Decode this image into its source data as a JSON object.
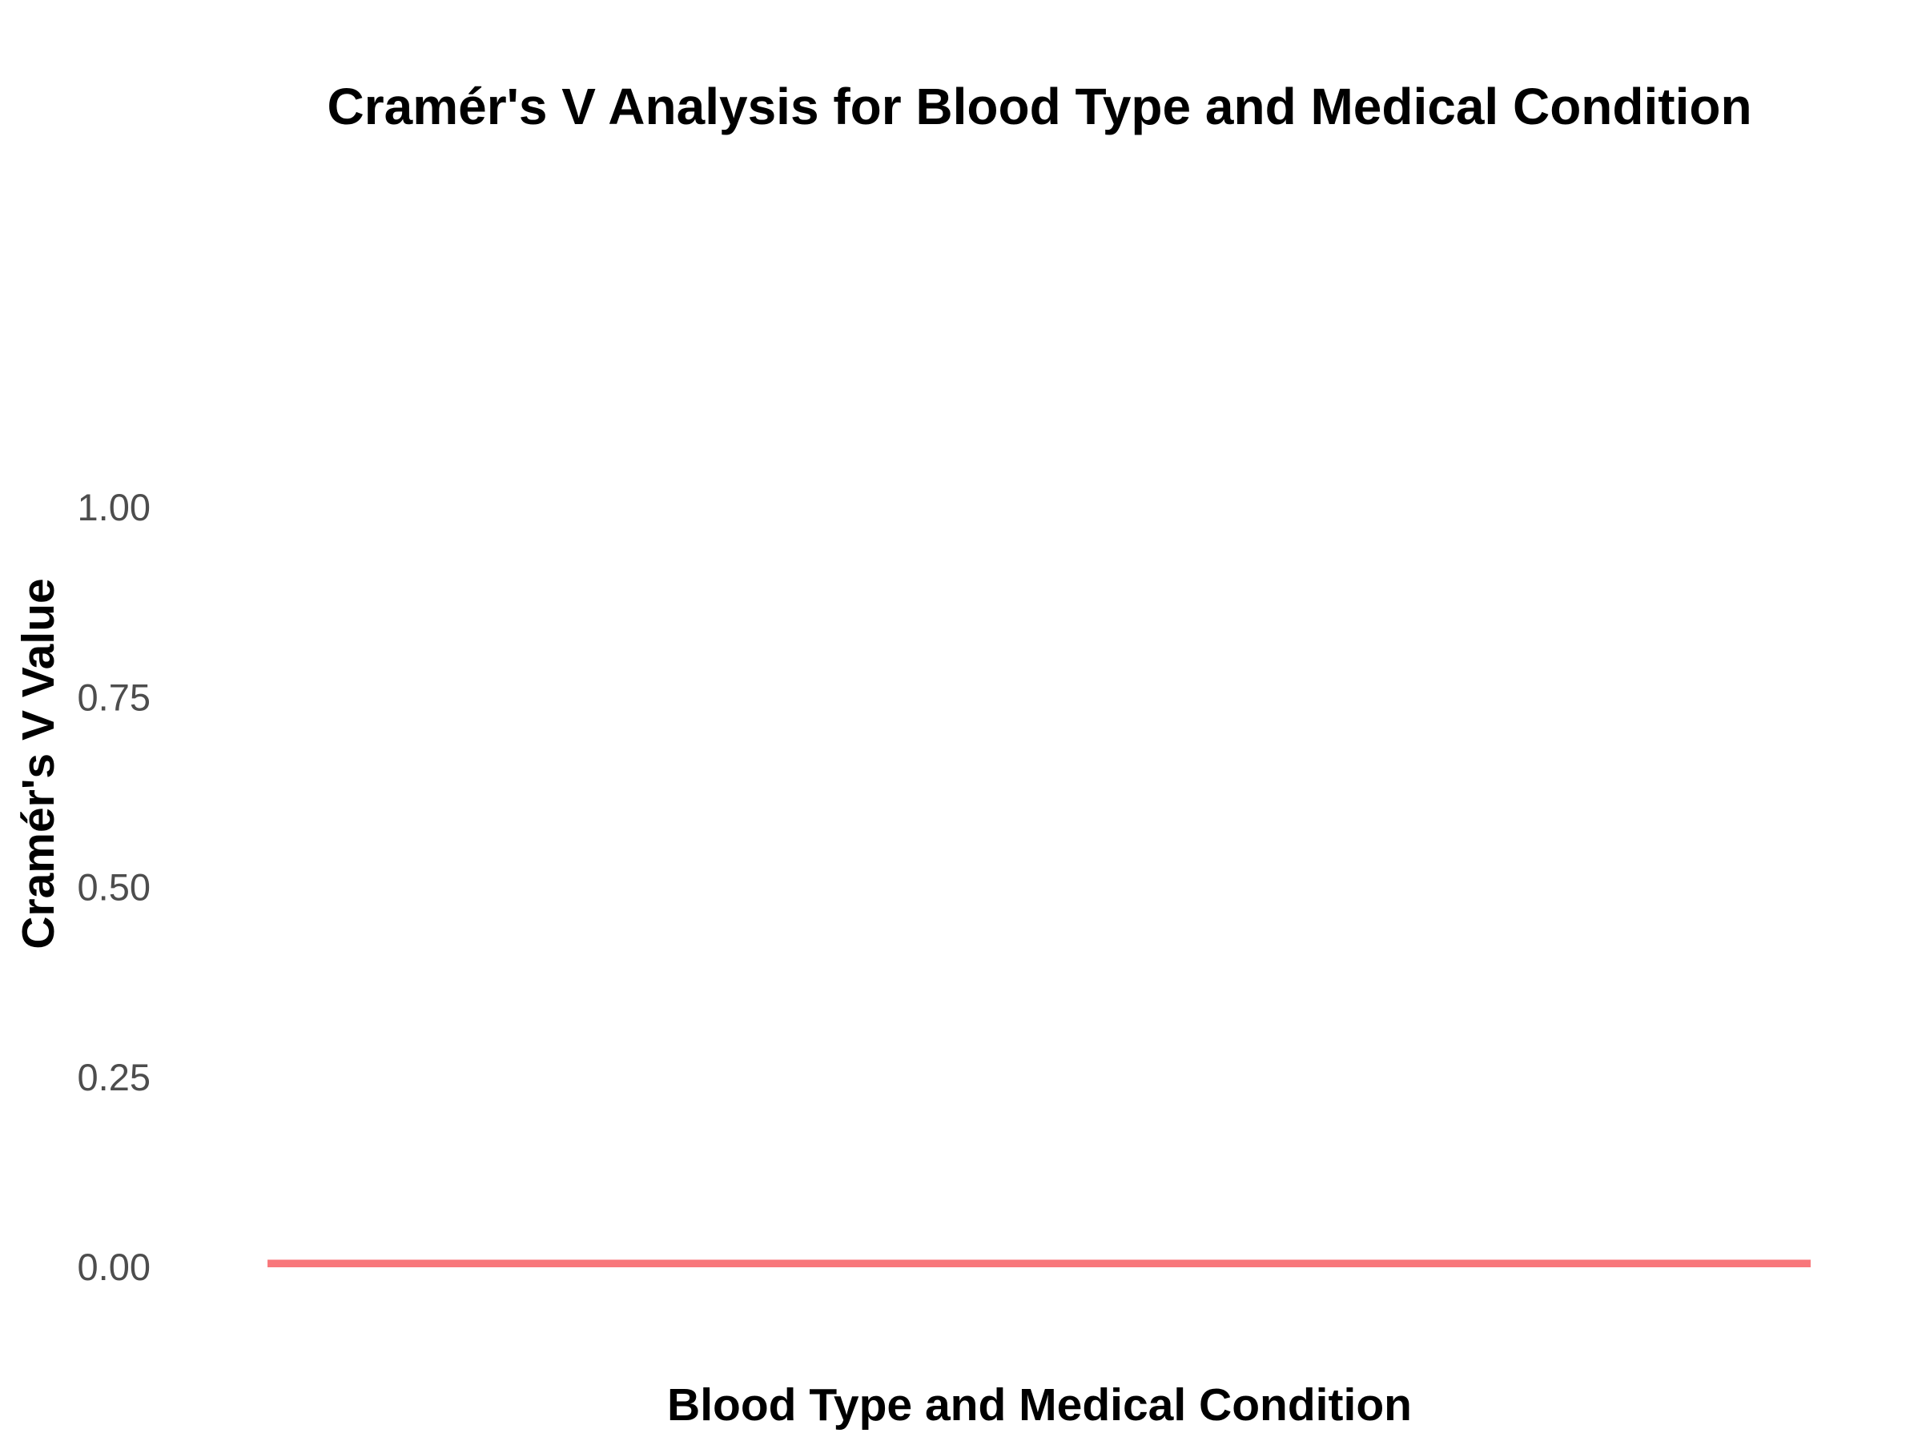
{
  "chart_data": {
    "type": "bar",
    "title": "Cramér's V Analysis for Blood Type and Medical Condition",
    "xlabel": "Blood Type and Medical Condition",
    "ylabel": "Cramér's V Value",
    "categories": [
      ""
    ],
    "values": [
      0.01
    ],
    "ylim": [
      0,
      1
    ],
    "yticks": [
      "0.00",
      "0.25",
      "0.50",
      "0.75",
      "1.00"
    ],
    "grid": false,
    "legend": "none",
    "bar_color": "#f8777b"
  }
}
